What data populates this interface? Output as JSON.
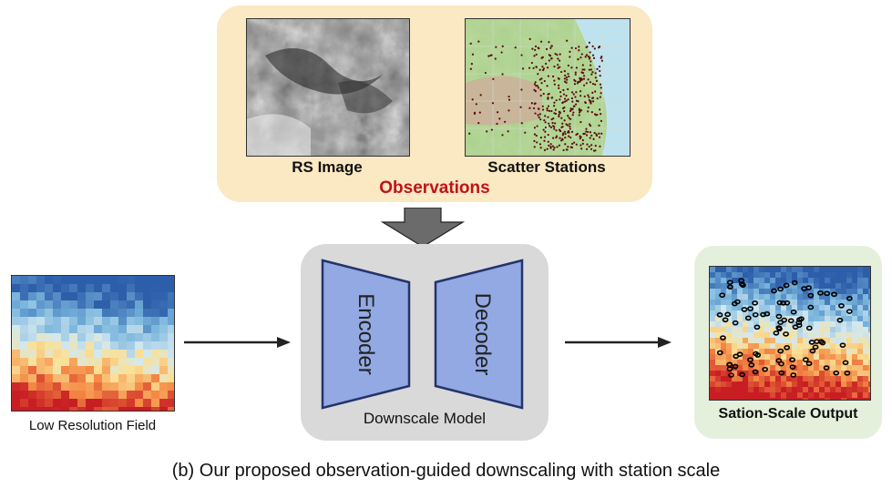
{
  "observations": {
    "title": "Observations",
    "rs_image_label": "RS Image",
    "scatter_label": "Scatter Stations"
  },
  "model": {
    "encoder_label": "Encoder",
    "decoder_label": "Decoder",
    "label": "Downscale Model"
  },
  "input": {
    "label": "Low Resolution Field"
  },
  "output": {
    "label": "Sation-Scale Output"
  },
  "caption": "(b) Our proposed observation-guided downscaling with station scale",
  "colors": {
    "observations_bg": "#fbe9c3",
    "observations_title": "#c0121b",
    "model_bg": "#d9d9d9",
    "block_fill": "#92a9e3",
    "block_stroke": "#24336b",
    "output_bg": "#e5f0dc",
    "arrow": "#222222",
    "down_arrow": "#6b6b6b"
  }
}
